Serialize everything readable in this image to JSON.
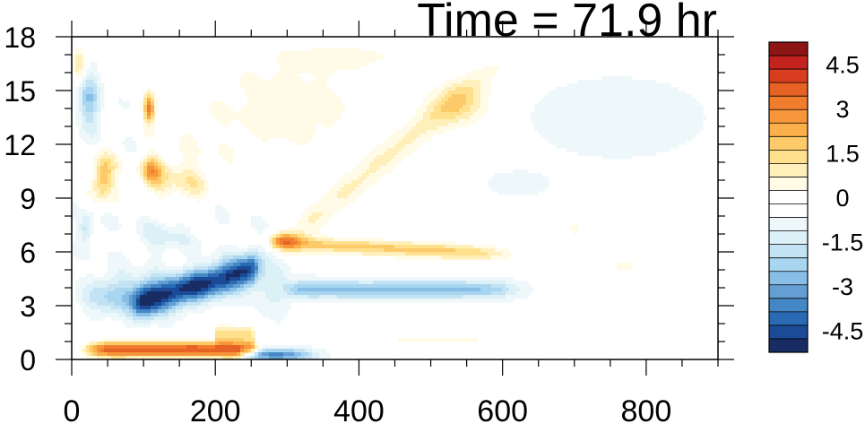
{
  "chart_data": {
    "type": "heatmap",
    "title": "Time = 71.9 hr",
    "xlabel": "",
    "ylabel": "",
    "xlim": [
      0,
      900
    ],
    "ylim": [
      0,
      18
    ],
    "x_ticks": [
      0,
      200,
      400,
      600,
      800
    ],
    "x_tick_labels": [
      "0",
      "200",
      "400",
      "600",
      "800"
    ],
    "y_ticks": [
      0,
      3,
      6,
      9,
      12,
      15,
      18
    ],
    "y_tick_labels": [
      "0",
      "3",
      "6",
      "9",
      "12",
      "15",
      "18"
    ],
    "grid": false,
    "colorbar": {
      "placement": "right",
      "min": -5.25,
      "max": 5.25,
      "step": 0.5,
      "tick_values": [
        4.5,
        3,
        1.5,
        0,
        -1.5,
        -3,
        -4.5
      ],
      "tick_labels": [
        "4.5",
        "3",
        "1.5",
        "0",
        "-1.5",
        "-3",
        "-4.5"
      ],
      "colors": [
        "#182b63",
        "#1b4b97",
        "#2a6ab4",
        "#4388c4",
        "#639fd2",
        "#88bde6",
        "#a8d5f0",
        "#c3e3f4",
        "#dcf0f8",
        "#eef8fb",
        "#ffffff",
        "#ffffff",
        "#fffbe6",
        "#fff0bb",
        "#ffe08d",
        "#fdca6a",
        "#fbb04b",
        "#f7953a",
        "#f07c2e",
        "#e66225",
        "#d93d1f",
        "#c4221e",
        "#8e1515"
      ]
    },
    "features": [
      {
        "name": "surface warm band",
        "x": [
          40,
          260
        ],
        "y": [
          0,
          1.3
        ],
        "value": 4.6
      },
      {
        "name": "surface cool band",
        "x": [
          240,
          400
        ],
        "y": [
          0,
          0.6
        ],
        "value": -3.5
      },
      {
        "name": "low-level cold pool",
        "x": [
          90,
          255
        ],
        "y": [
          2.2,
          4.8
        ],
        "value": -4.8
      },
      {
        "name": "cold pool shoulder",
        "x": [
          30,
          110
        ],
        "y": [
          2.5,
          5.0
        ],
        "value": -2.0
      },
      {
        "name": "warm layer 6.4 km",
        "x": [
          280,
          600
        ],
        "y": [
          5.7,
          7.0
        ],
        "value": 2.4
      },
      {
        "name": "warm core 6.7 km",
        "x": [
          280,
          310
        ],
        "y": [
          6.3,
          7.0
        ],
        "value": 4.0
      },
      {
        "name": "cool layer 4 km",
        "x": [
          310,
          610
        ],
        "y": [
          3.2,
          4.5
        ],
        "value": -2.4
      },
      {
        "name": "tilted warm plume",
        "x": [
          310,
          600
        ],
        "y": [
          7,
          17
        ],
        "value": 1.2
      },
      {
        "name": "upper warm patch",
        "x": [
          40,
          130
        ],
        "y": [
          9,
          11
        ],
        "value": 3.0
      },
      {
        "name": "upper cool column",
        "x": [
          0,
          40
        ],
        "y": [
          12,
          16
        ],
        "value": -2.0
      },
      {
        "name": "far-field cool patch",
        "x": [
          650,
          900
        ],
        "y": [
          11,
          16
        ],
        "value": -0.6
      }
    ]
  }
}
